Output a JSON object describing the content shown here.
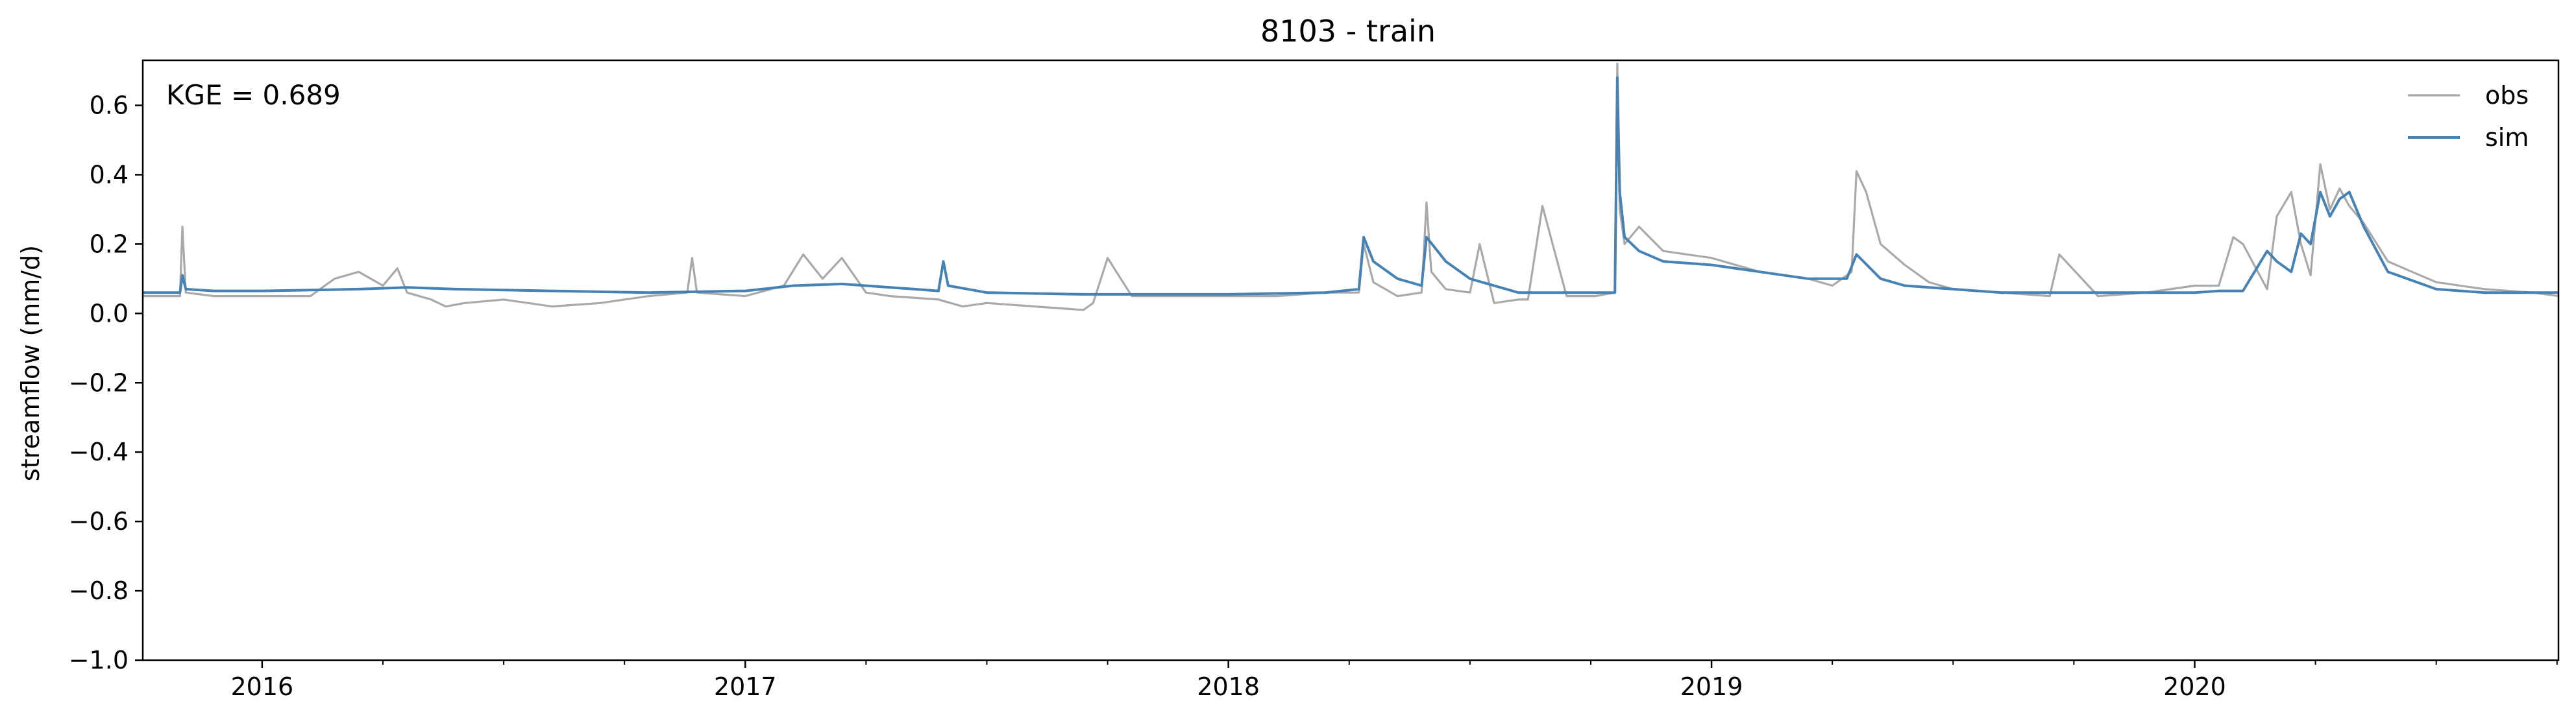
{
  "chart_data": {
    "type": "line",
    "title": "8103 - train",
    "xlabel": "",
    "ylabel": "streamflow (mm/d)",
    "ylim": [
      -1.0,
      0.73
    ],
    "xlim": [
      2015.753,
      2020.753
    ],
    "yticks": [
      -1.0,
      -0.8,
      -0.6,
      -0.4,
      -0.2,
      0.0,
      0.2,
      0.4,
      0.6
    ],
    "ytick_labels": [
      "−1.0",
      "−0.8",
      "−0.6",
      "−0.4",
      "−0.2",
      "0.0",
      "0.2",
      "0.4",
      "0.6"
    ],
    "xticks": [
      2016,
      2017,
      2018,
      2019,
      2020
    ],
    "xtick_labels": [
      "2016",
      "2017",
      "2018",
      "2019",
      "2020"
    ],
    "annotation": "KGE = 0.689",
    "legend": {
      "position": "top-right",
      "entries": [
        "obs",
        "sim"
      ]
    },
    "colors": {
      "obs": "#a9a9a9",
      "sim": "#4682b4"
    },
    "series": [
      {
        "name": "obs",
        "x": [
          2015.753,
          2015.8,
          2015.83,
          2015.835,
          2015.842,
          2015.9,
          2016.0,
          2016.1,
          2016.15,
          2016.2,
          2016.25,
          2016.28,
          2016.3,
          2016.35,
          2016.38,
          2016.42,
          2016.5,
          2016.6,
          2016.7,
          2016.8,
          2016.88,
          2016.89,
          2016.9,
          2017.0,
          2017.08,
          2017.12,
          2017.16,
          2017.2,
          2017.25,
          2017.3,
          2017.4,
          2017.45,
          2017.5,
          2017.6,
          2017.7,
          2017.72,
          2017.75,
          2017.8,
          2017.9,
          2018.0,
          2018.1,
          2018.2,
          2018.27,
          2018.28,
          2018.3,
          2018.35,
          2018.4,
          2018.41,
          2018.42,
          2018.45,
          2018.5,
          2018.52,
          2018.55,
          2018.6,
          2018.62,
          2018.65,
          2018.7,
          2018.72,
          2018.76,
          2018.8,
          2018.805,
          2018.81,
          2018.82,
          2018.85,
          2018.9,
          2019.0,
          2019.1,
          2019.2,
          2019.25,
          2019.29,
          2019.3,
          2019.32,
          2019.35,
          2019.4,
          2019.45,
          2019.5,
          2019.6,
          2019.7,
          2019.72,
          2019.8,
          2019.9,
          2020.0,
          2020.05,
          2020.08,
          2020.1,
          2020.15,
          2020.17,
          2020.2,
          2020.22,
          2020.24,
          2020.26,
          2020.28,
          2020.3,
          2020.32,
          2020.35,
          2020.4,
          2020.45,
          2020.5,
          2020.6,
          2020.7,
          2020.753
        ],
        "values": [
          0.05,
          0.05,
          0.05,
          0.25,
          0.06,
          0.05,
          0.05,
          0.05,
          0.1,
          0.12,
          0.08,
          0.13,
          0.06,
          0.04,
          0.02,
          0.03,
          0.04,
          0.02,
          0.03,
          0.05,
          0.06,
          0.16,
          0.06,
          0.05,
          0.08,
          0.17,
          0.1,
          0.16,
          0.06,
          0.05,
          0.04,
          0.02,
          0.03,
          0.02,
          0.01,
          0.03,
          0.16,
          0.05,
          0.05,
          0.05,
          0.05,
          0.06,
          0.06,
          0.2,
          0.09,
          0.05,
          0.06,
          0.32,
          0.12,
          0.07,
          0.06,
          0.2,
          0.03,
          0.04,
          0.04,
          0.31,
          0.05,
          0.05,
          0.05,
          0.06,
          0.72,
          0.3,
          0.2,
          0.25,
          0.18,
          0.16,
          0.12,
          0.1,
          0.08,
          0.12,
          0.41,
          0.35,
          0.2,
          0.14,
          0.09,
          0.07,
          0.06,
          0.05,
          0.17,
          0.05,
          0.06,
          0.08,
          0.08,
          0.22,
          0.2,
          0.07,
          0.28,
          0.35,
          0.2,
          0.11,
          0.43,
          0.3,
          0.36,
          0.31,
          0.26,
          0.15,
          0.12,
          0.09,
          0.07,
          0.06,
          0.05
        ]
      },
      {
        "name": "sim",
        "x": [
          2015.753,
          2015.8,
          2015.83,
          2015.835,
          2015.842,
          2015.9,
          2016.0,
          2016.2,
          2016.3,
          2016.4,
          2016.6,
          2016.8,
          2017.0,
          2017.1,
          2017.2,
          2017.3,
          2017.4,
          2017.41,
          2017.42,
          2017.5,
          2017.7,
          2017.9,
          2018.0,
          2018.2,
          2018.27,
          2018.28,
          2018.3,
          2018.35,
          2018.4,
          2018.41,
          2018.45,
          2018.5,
          2018.55,
          2018.6,
          2018.7,
          2018.76,
          2018.8,
          2018.805,
          2018.81,
          2018.82,
          2018.85,
          2018.9,
          2019.0,
          2019.1,
          2019.2,
          2019.28,
          2019.3,
          2019.35,
          2019.4,
          2019.5,
          2019.6,
          2019.8,
          2019.9,
          2020.0,
          2020.05,
          2020.08,
          2020.1,
          2020.15,
          2020.17,
          2020.2,
          2020.22,
          2020.24,
          2020.26,
          2020.28,
          2020.3,
          2020.32,
          2020.35,
          2020.4,
          2020.5,
          2020.6,
          2020.753
        ],
        "values": [
          0.06,
          0.06,
          0.06,
          0.11,
          0.07,
          0.065,
          0.065,
          0.07,
          0.075,
          0.07,
          0.065,
          0.06,
          0.065,
          0.08,
          0.085,
          0.075,
          0.065,
          0.15,
          0.08,
          0.06,
          0.055,
          0.055,
          0.055,
          0.06,
          0.07,
          0.22,
          0.15,
          0.1,
          0.08,
          0.22,
          0.15,
          0.1,
          0.08,
          0.06,
          0.06,
          0.06,
          0.06,
          0.68,
          0.35,
          0.22,
          0.18,
          0.15,
          0.14,
          0.12,
          0.1,
          0.1,
          0.17,
          0.1,
          0.08,
          0.07,
          0.06,
          0.06,
          0.06,
          0.06,
          0.065,
          0.065,
          0.065,
          0.18,
          0.15,
          0.12,
          0.23,
          0.2,
          0.35,
          0.28,
          0.33,
          0.35,
          0.25,
          0.12,
          0.07,
          0.06,
          0.06
        ]
      }
    ]
  }
}
